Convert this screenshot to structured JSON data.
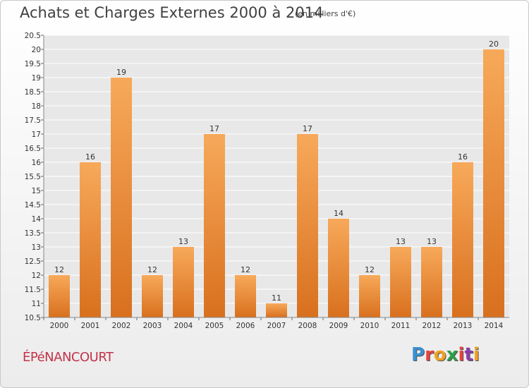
{
  "title": "Achats et Charges Externes 2000 à 2014",
  "unit": "(en milliers d'€)",
  "commune": "ÉPéNANCOURT",
  "logo": {
    "text": "Proxiti",
    "letter_colors": [
      "#3a8fd0",
      "#e8423e",
      "#f0a020",
      "#2e9e4a",
      "#e8423e",
      "#8a3ea8",
      "#f0a020"
    ]
  },
  "colors": {
    "bar_light": "#f7a95a",
    "bar_dark": "#d8701e",
    "plot_background": "#e8e8e8",
    "grid": "#ffffff"
  },
  "chart_data": {
    "type": "bar",
    "categories": [
      "2000",
      "2001",
      "2002",
      "2003",
      "2004",
      "2005",
      "2006",
      "2007",
      "2008",
      "2009",
      "2010",
      "2011",
      "2012",
      "2013",
      "2014"
    ],
    "values": [
      12,
      16,
      19,
      12,
      13,
      17,
      12,
      11,
      17,
      14,
      12,
      13,
      13,
      16,
      20
    ],
    "data_labels": [
      "12",
      "16",
      "19",
      "12",
      "13",
      "17",
      "12",
      "11",
      "17",
      "14",
      "12",
      "13",
      "13",
      "16",
      "20"
    ],
    "ylim": [
      10.5,
      20.5
    ],
    "yticks": [
      "10.5",
      "11",
      "11.5",
      "12",
      "12.5",
      "13",
      "13.5",
      "14",
      "14.5",
      "15",
      "15.5",
      "16",
      "16.5",
      "17",
      "17.5",
      "18",
      "18.5",
      "19",
      "19.5",
      "20",
      "20.5"
    ],
    "grid": true,
    "legend": "none"
  }
}
